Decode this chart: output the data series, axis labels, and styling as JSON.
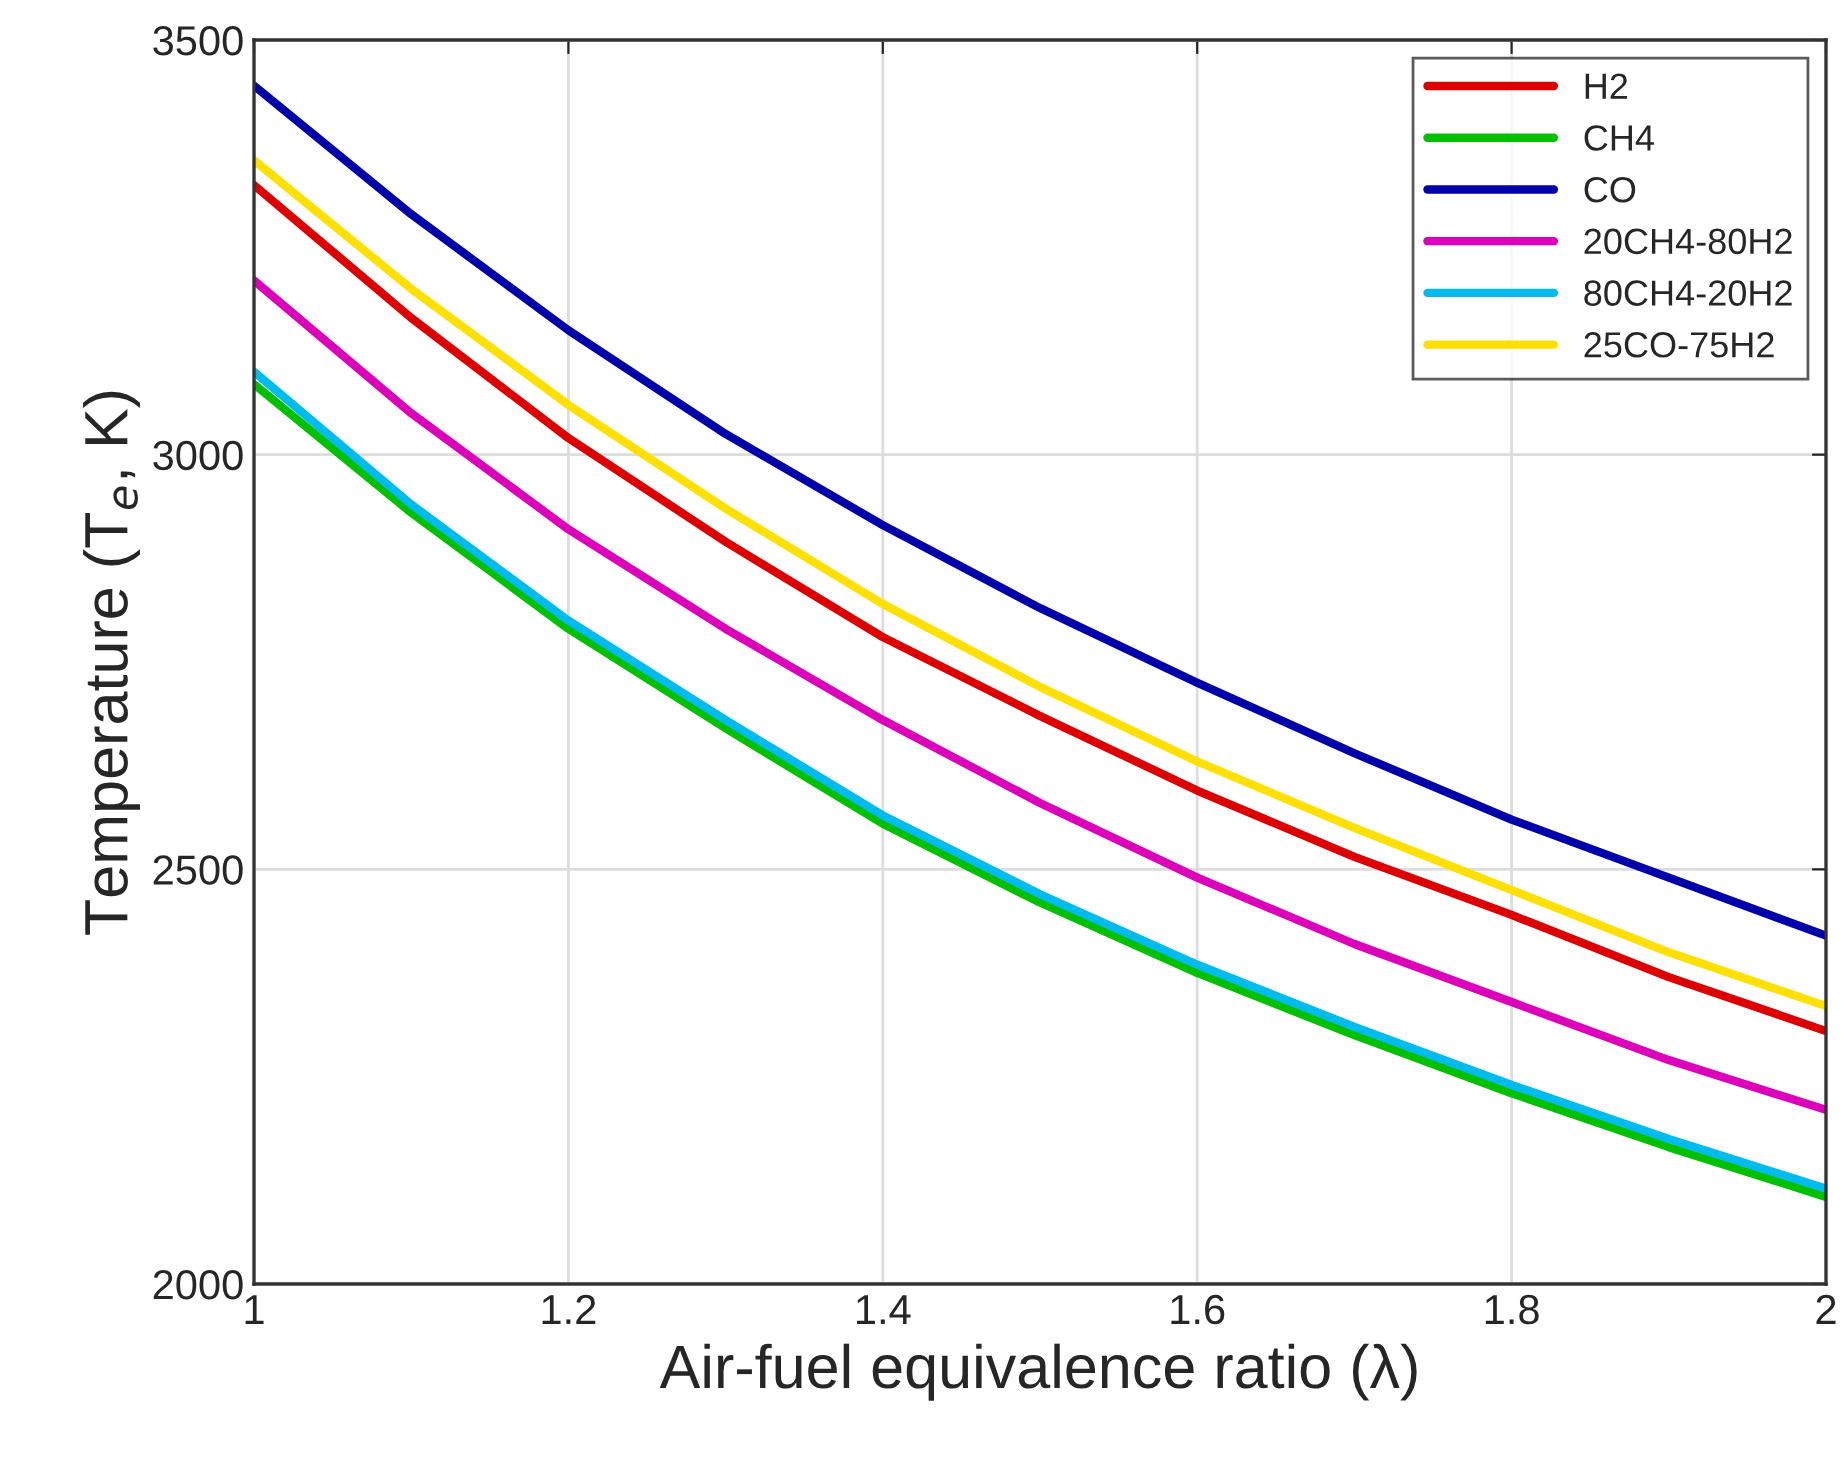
{
  "chart_data": {
    "type": "line",
    "xlabel": "Air-fuel equivalence ratio (λ)",
    "ylabel": "Temperature (T$_{e}$, K)",
    "x": [
      1,
      1.1,
      1.2,
      1.3,
      1.4,
      1.5,
      1.6,
      1.7,
      1.8,
      1.9,
      2
    ],
    "series": [
      {
        "name": "H2",
        "color": "#dd0000",
        "values": [
          3325,
          3165,
          3020,
          2895,
          2780,
          2685,
          2595,
          2515,
          2445,
          2370,
          2305
        ]
      },
      {
        "name": "CH4",
        "color": "#00c000",
        "values": [
          3085,
          2930,
          2790,
          2670,
          2555,
          2460,
          2375,
          2300,
          2230,
          2165,
          2105
        ]
      },
      {
        "name": "CO",
        "color": "#0000aa",
        "values": [
          3445,
          3290,
          3150,
          3025,
          2915,
          2815,
          2725,
          2640,
          2560,
          2490,
          2420
        ]
      },
      {
        "name": "20CH4-80H2",
        "color": "#dd00bb",
        "values": [
          3210,
          3050,
          2910,
          2790,
          2680,
          2580,
          2490,
          2410,
          2340,
          2270,
          2210
        ]
      },
      {
        "name": "80CH4-20H2",
        "color": "#00bbee",
        "values": [
          3100,
          2940,
          2800,
          2680,
          2565,
          2470,
          2385,
          2310,
          2240,
          2175,
          2115
        ]
      },
      {
        "name": "25CO-75H2",
        "color": "#ffe000",
        "values": [
          3355,
          3200,
          3060,
          2935,
          2820,
          2720,
          2630,
          2550,
          2475,
          2400,
          2335
        ]
      }
    ],
    "xlim": [
      1,
      2
    ],
    "xticks": [
      1,
      1.2,
      1.4,
      1.6,
      1.8,
      2
    ],
    "ylim": [
      2000,
      3500
    ],
    "yticks": [
      2000,
      2500,
      3000,
      3500
    ],
    "grid": true,
    "legend": "top right",
    "line_style": "solid",
    "marker": "none"
  }
}
